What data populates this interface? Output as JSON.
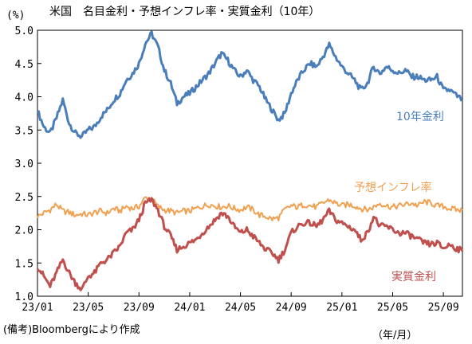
{
  "chart_data": {
    "type": "line",
    "title": "米国　名目金利・予想インフレ率・実質金利（10年）",
    "y_unit_label": "(%)",
    "ylim": [
      1.0,
      5.0
    ],
    "yticks": [
      "5.0",
      "4.5",
      "4.0",
      "3.5",
      "3.0",
      "2.5",
      "2.0",
      "1.5",
      "1.0"
    ],
    "x_ticks": [
      "23/01",
      "23/05",
      "23/09",
      "24/01",
      "24/05",
      "24/09",
      "25/01",
      "25/05",
      "25/09"
    ],
    "x_unit_label": "（年/月）",
    "source_note": "(備考)Bloombergにより作成",
    "grid": false,
    "x_months": [
      0,
      0.5,
      1,
      1.5,
      2,
      2.5,
      3,
      3.5,
      4,
      4.5,
      5,
      5.5,
      6,
      6.5,
      7,
      7.5,
      8,
      8.5,
      9,
      9.5,
      10,
      10.5,
      11,
      11.5,
      12,
      12.5,
      13,
      13.5,
      14,
      14.5,
      15,
      15.5,
      16,
      16.5,
      17,
      17.5,
      18,
      18.5,
      19,
      19.5,
      20,
      20.5,
      21,
      21.5,
      22,
      22.5,
      23,
      23.5,
      24,
      24.5,
      25,
      25.5,
      26,
      26.5,
      27,
      27.5,
      28,
      28.5,
      29,
      29.5,
      30,
      30.5,
      31,
      31.5,
      32,
      32.5,
      33,
      33.5
    ],
    "series": [
      {
        "name": "10年金利",
        "color": "#4a7ebb",
        "values": [
          3.79,
          3.55,
          3.45,
          3.68,
          3.95,
          3.6,
          3.45,
          3.4,
          3.5,
          3.55,
          3.7,
          3.8,
          3.95,
          4.05,
          4.25,
          4.35,
          4.5,
          4.8,
          4.95,
          4.75,
          4.4,
          4.2,
          3.9,
          4.0,
          4.05,
          4.15,
          4.25,
          4.35,
          4.5,
          4.65,
          4.55,
          4.4,
          4.3,
          4.4,
          4.25,
          4.15,
          3.95,
          3.8,
          3.65,
          3.75,
          4.05,
          4.25,
          4.4,
          4.5,
          4.45,
          4.6,
          4.78,
          4.6,
          4.45,
          4.35,
          4.25,
          4.1,
          4.2,
          4.45,
          4.35,
          4.45,
          4.4,
          4.35,
          4.4,
          4.3,
          4.3,
          4.25,
          4.25,
          4.3,
          4.1,
          4.1,
          4.02,
          3.95
        ]
      },
      {
        "name": "予想インフレ率",
        "color": "#f0a050",
        "values": [
          2.2,
          2.25,
          2.3,
          2.38,
          2.28,
          2.26,
          2.22,
          2.24,
          2.22,
          2.26,
          2.28,
          2.25,
          2.32,
          2.28,
          2.35,
          2.32,
          2.35,
          2.48,
          2.46,
          2.35,
          2.3,
          2.28,
          2.25,
          2.28,
          2.28,
          2.32,
          2.35,
          2.38,
          2.36,
          2.34,
          2.36,
          2.32,
          2.3,
          2.34,
          2.3,
          2.22,
          2.2,
          2.16,
          2.18,
          2.3,
          2.36,
          2.34,
          2.38,
          2.36,
          2.34,
          2.4,
          2.45,
          2.4,
          2.36,
          2.38,
          2.36,
          2.32,
          2.3,
          2.34,
          2.4,
          2.36,
          2.34,
          2.36,
          2.38,
          2.4,
          2.36,
          2.42,
          2.4,
          2.36,
          2.35,
          2.32,
          2.3,
          2.29
        ]
      },
      {
        "name": "実質金利",
        "color": "#c0504d",
        "values": [
          1.45,
          1.3,
          1.15,
          1.35,
          1.55,
          1.35,
          1.2,
          1.1,
          1.3,
          1.35,
          1.5,
          1.55,
          1.65,
          1.75,
          1.95,
          2.0,
          2.15,
          2.4,
          2.45,
          2.3,
          2.05,
          1.9,
          1.7,
          1.75,
          1.8,
          1.85,
          1.95,
          2.05,
          2.15,
          2.25,
          2.2,
          2.05,
          1.95,
          2.0,
          1.9,
          1.8,
          1.7,
          1.65,
          1.55,
          1.7,
          1.95,
          2.05,
          2.1,
          2.1,
          2.05,
          2.15,
          2.28,
          2.15,
          2.1,
          2.05,
          2.0,
          1.85,
          1.95,
          2.2,
          2.05,
          2.05,
          2.0,
          1.95,
          1.95,
          1.9,
          1.85,
          1.8,
          1.78,
          1.8,
          1.72,
          1.78,
          1.72,
          1.68
        ]
      }
    ]
  }
}
